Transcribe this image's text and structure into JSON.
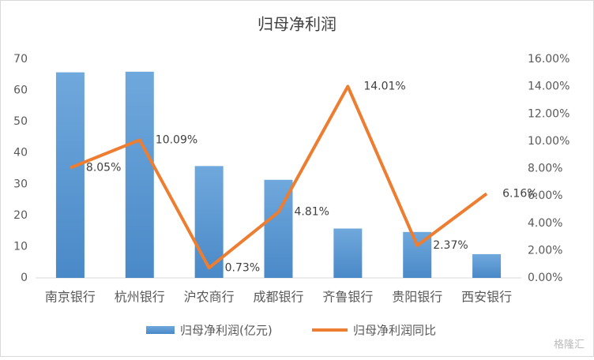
{
  "chart_data": {
    "type": "combo",
    "title": "归母净利润",
    "categories": [
      "南京银行",
      "杭州银行",
      "沪农商行",
      "成都银行",
      "齐鲁银行",
      "贵阳银行",
      "西安银行"
    ],
    "series": [
      {
        "name": "归母净利润(亿元)",
        "type": "bar",
        "color": "#5b9bd5",
        "values": [
          65.8,
          66.0,
          35.8,
          31.4,
          15.8,
          14.7,
          7.6
        ]
      },
      {
        "name": "归母净利润同比",
        "type": "line",
        "color": "#ed7d31",
        "axis": "y2",
        "values": [
          8.05,
          10.09,
          0.73,
          4.81,
          14.01,
          2.37,
          6.16
        ],
        "value_labels": [
          "8.05%",
          "10.09%",
          "0.73%",
          "4.81%",
          "14.01%",
          "2.37%",
          "6.16%"
        ]
      }
    ],
    "ylim": [
      0,
      70
    ],
    "yticks": [
      0,
      10,
      20,
      30,
      40,
      50,
      60,
      70
    ],
    "y2lim": [
      0,
      16
    ],
    "y2ticks": [
      {
        "value": 0,
        "label": "0.00%"
      },
      {
        "value": 2,
        "label": "2.00%"
      },
      {
        "value": 4,
        "label": "4.00%"
      },
      {
        "value": 6,
        "label": "6.00%"
      },
      {
        "value": 8,
        "label": "8.00%"
      },
      {
        "value": 10,
        "label": "10.00%"
      },
      {
        "value": 12,
        "label": "12.00%"
      },
      {
        "value": 14,
        "label": "14.00%"
      },
      {
        "value": 16,
        "label": "16.00%"
      }
    ],
    "grid": false,
    "legend": "bottom",
    "watermark": "格隆汇"
  }
}
